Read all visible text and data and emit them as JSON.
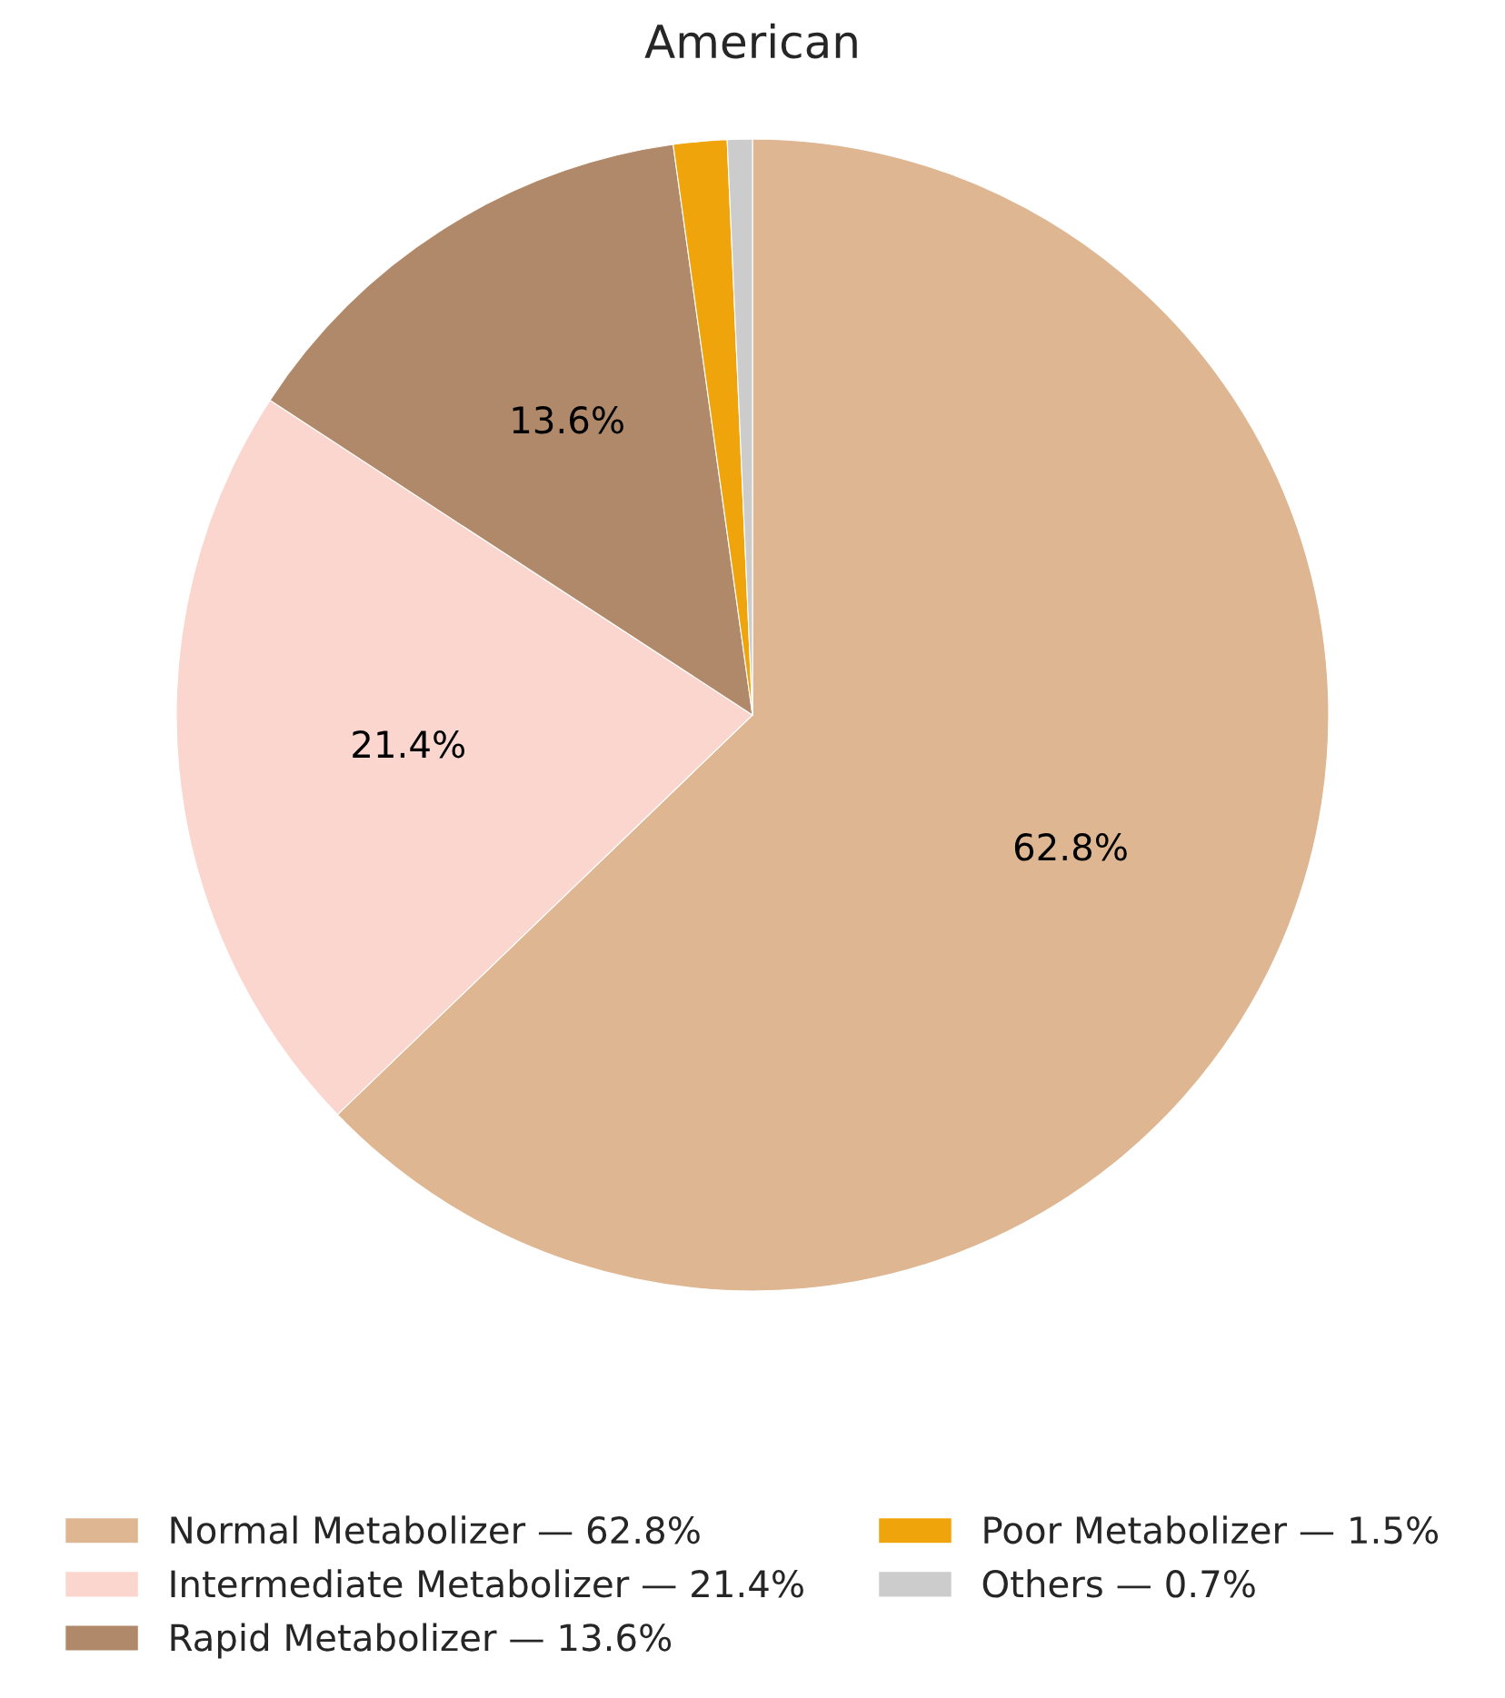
{
  "chart_data": {
    "type": "pie",
    "title": "American",
    "categories": [
      "Normal Metabolizer — 62.8%",
      "Intermediate Metabolizer — 21.4%",
      "Rapid Metabolizer — 13.6%",
      "Poor Metabolizer — 1.5%",
      "Others — 0.7%"
    ],
    "values": [
      62.8,
      21.4,
      13.6,
      1.5,
      0.7
    ],
    "colors": [
      "#deb691",
      "#fad6cf",
      "#b0896a",
      "#f0a40c",
      "#cccccc"
    ],
    "value_labels": [
      "62.8%",
      "21.4%",
      "13.6%",
      null,
      null
    ],
    "legend": "bottom"
  }
}
